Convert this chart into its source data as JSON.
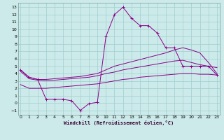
{
  "xlabel": "Windchill (Refroidissement éolien,°C)",
  "background_color": "#cdeaea",
  "grid_color": "#9fcfcf",
  "line_color": "#880088",
  "x_ticks": [
    0,
    1,
    2,
    3,
    4,
    5,
    6,
    7,
    8,
    9,
    10,
    11,
    12,
    13,
    14,
    15,
    16,
    17,
    18,
    19,
    20,
    21,
    22,
    23
  ],
  "y_ticks": [
    -1,
    0,
    1,
    2,
    3,
    4,
    5,
    6,
    7,
    8,
    9,
    10,
    11,
    12,
    13
  ],
  "xlim": [
    -0.3,
    23.3
  ],
  "ylim": [
    -1.6,
    13.6
  ],
  "series": [
    {
      "x": [
        0,
        1,
        2,
        3,
        4,
        5,
        6,
        7,
        8,
        9,
        10,
        11,
        12,
        13,
        14,
        15,
        16,
        17,
        18,
        19,
        20,
        21,
        22,
        23
      ],
      "y": [
        4.5,
        3.5,
        3.2,
        0.5,
        0.5,
        0.5,
        0.3,
        -1.0,
        -0.1,
        0.1,
        9.0,
        12.0,
        13.0,
        11.5,
        10.5,
        10.5,
        9.5,
        7.5,
        7.5,
        5.0,
        5.0,
        5.0,
        5.0,
        3.8
      ],
      "markers": true
    },
    {
      "x": [
        0,
        1,
        2,
        3,
        4,
        5,
        6,
        7,
        8,
        9,
        10,
        11,
        12,
        13,
        14,
        15,
        16,
        17,
        18,
        19,
        20,
        21,
        22,
        23
      ],
      "y": [
        4.5,
        3.5,
        3.2,
        3.2,
        3.3,
        3.4,
        3.5,
        3.6,
        3.8,
        4.0,
        4.5,
        5.0,
        5.3,
        5.6,
        5.9,
        6.2,
        6.5,
        6.8,
        7.2,
        7.5,
        7.2,
        6.8,
        5.5,
        4.0
      ],
      "markers": false
    },
    {
      "x": [
        0,
        1,
        2,
        3,
        4,
        5,
        6,
        7,
        8,
        9,
        10,
        11,
        12,
        13,
        14,
        15,
        16,
        17,
        18,
        19,
        20,
        21,
        22,
        23
      ],
      "y": [
        4.3,
        3.3,
        3.1,
        3.0,
        3.1,
        3.2,
        3.3,
        3.4,
        3.5,
        3.7,
        4.0,
        4.2,
        4.5,
        4.7,
        4.9,
        5.1,
        5.3,
        5.5,
        5.7,
        5.8,
        5.5,
        5.2,
        5.0,
        4.8
      ],
      "markers": false
    },
    {
      "x": [
        0,
        1,
        2,
        3,
        4,
        5,
        6,
        7,
        8,
        9,
        10,
        11,
        12,
        13,
        14,
        15,
        16,
        17,
        18,
        19,
        20,
        21,
        22,
        23
      ],
      "y": [
        2.5,
        2.0,
        2.0,
        2.0,
        2.1,
        2.2,
        2.3,
        2.4,
        2.5,
        2.6,
        2.8,
        3.0,
        3.2,
        3.3,
        3.5,
        3.6,
        3.7,
        3.8,
        3.9,
        4.0,
        4.0,
        3.9,
        3.9,
        3.8
      ],
      "markers": false
    }
  ]
}
